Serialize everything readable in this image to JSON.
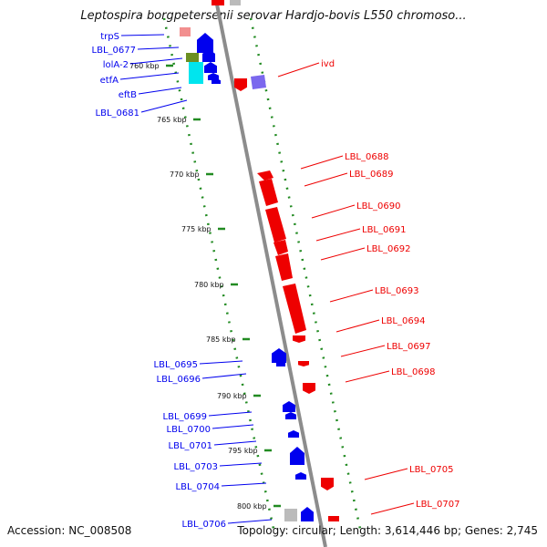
{
  "title": "Leptospira borgpetersenii serovar Hardjo-bovis L550 chromoso...",
  "accession": "Accession: NC_008508",
  "summary": "Topology: circular; Length: 3,614,446 bp; Genes: 2,745",
  "colors": {
    "reverse_strand": "#0000ee",
    "forward_strand": "#ee0000",
    "backbone": "#888888",
    "tick_dots": "#228b22"
  },
  "kbp_marks": [
    "760 kbp",
    "765 kbp",
    "770 kbp",
    "775 kbp",
    "780 kbp",
    "785 kbp",
    "790 kbp",
    "795 kbp",
    "800 kbp"
  ],
  "left_labels": [
    "trpS",
    "LBL_0677",
    "lolA-2",
    "etfA",
    "eftB",
    "LBL_0681",
    "LBL_0695",
    "LBL_0696",
    "LBL_0699",
    "LBL_0700",
    "LBL_0701",
    "LBL_0703",
    "LBL_0704",
    "LBL_0706"
  ],
  "right_labels": [
    "ivd",
    "LBL_0688",
    "LBL_0689",
    "LBL_0690",
    "LBL_0691",
    "LBL_0692",
    "LBL_0693",
    "LBL_0694",
    "LBL_0697",
    "LBL_0698",
    "LBL_0705",
    "LBL_0707"
  ]
}
